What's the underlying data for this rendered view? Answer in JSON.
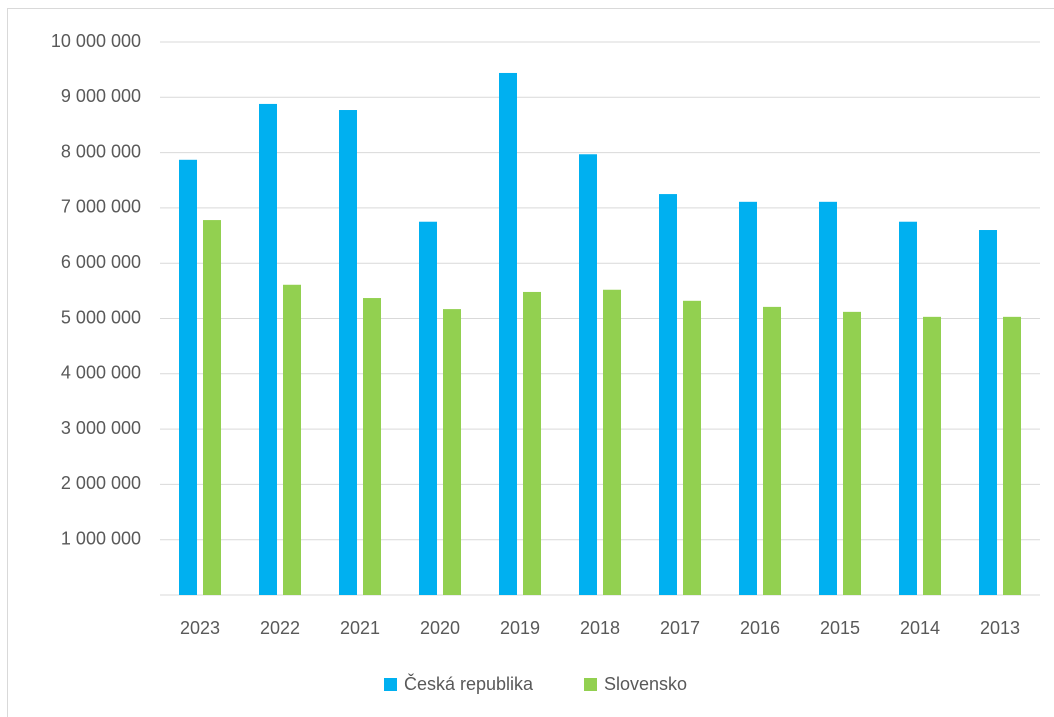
{
  "chart_data": {
    "type": "bar",
    "categories": [
      "2023",
      "2022",
      "2021",
      "2020",
      "2019",
      "2018",
      "2017",
      "2016",
      "2015",
      "2014",
      "2013"
    ],
    "series": [
      {
        "name": "Česká republika",
        "color": "#00b0f0",
        "values": [
          7870000,
          8880000,
          8770000,
          6750000,
          9440000,
          7970000,
          7250000,
          7110000,
          7110000,
          6750000,
          6600000
        ]
      },
      {
        "name": "Slovensko",
        "color": "#92d050",
        "values": [
          6780000,
          5610000,
          5370000,
          5170000,
          5480000,
          5520000,
          5320000,
          5210000,
          5120000,
          5030000,
          5030000
        ]
      }
    ],
    "ylim": [
      0,
      10000000
    ],
    "yticks": [
      {
        "value": 1000000,
        "label": "1 000 000"
      },
      {
        "value": 2000000,
        "label": "2 000 000"
      },
      {
        "value": 3000000,
        "label": "3 000 000"
      },
      {
        "value": 4000000,
        "label": "4 000 000"
      },
      {
        "value": 5000000,
        "label": "5 000 000"
      },
      {
        "value": 6000000,
        "label": "6 000 000"
      },
      {
        "value": 7000000,
        "label": "7 000 000"
      },
      {
        "value": 8000000,
        "label": "8 000 000"
      },
      {
        "value": 9000000,
        "label": "9 000 000"
      },
      {
        "value": 10000000,
        "label": "10 000 000"
      }
    ],
    "grid": true,
    "legend": "bottom"
  }
}
